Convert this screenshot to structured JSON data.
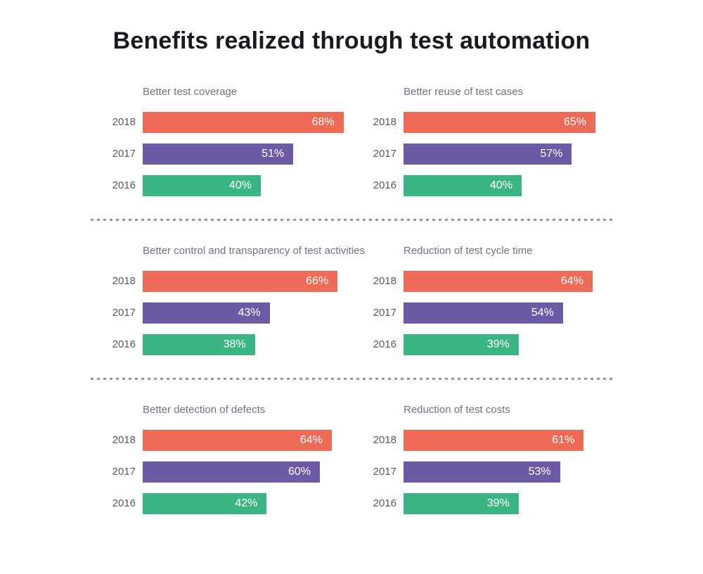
{
  "title": "Benefits realized through test automation",
  "years": [
    "2018",
    "2017",
    "2016"
  ],
  "colors": {
    "series": {
      "2018": "#EC6A56",
      "2017": "#6D5AA5",
      "2016": "#3CB585"
    },
    "divider": "#969696",
    "heading": "#191922",
    "year_label": "#565B64",
    "chart_title": "#6E7481",
    "value_label": "#FFFFFF",
    "background": "#FFFFFF"
  },
  "grid": {
    "columns": 2,
    "rows": 3,
    "divider_style": "dashed"
  },
  "chart_data": [
    {
      "type": "bar",
      "orientation": "horizontal",
      "title": "Better test coverage",
      "categories": [
        "2018",
        "2017",
        "2016"
      ],
      "values": [
        68,
        51,
        40
      ],
      "labels": [
        "68%",
        "51%",
        "40%"
      ],
      "xlim": [
        0,
        100
      ],
      "grid_lines": false,
      "value_labels_inside_bar_end": true
    },
    {
      "type": "bar",
      "orientation": "horizontal",
      "title": "Better reuse of test cases",
      "categories": [
        "2018",
        "2017",
        "2016"
      ],
      "values": [
        65,
        57,
        40
      ],
      "labels": [
        "65%",
        "57%",
        "40%"
      ],
      "xlim": [
        0,
        100
      ],
      "grid_lines": false,
      "value_labels_inside_bar_end": true
    },
    {
      "type": "bar",
      "orientation": "horizontal",
      "title": "Better control and transparency of test activities",
      "categories": [
        "2018",
        "2017",
        "2016"
      ],
      "values": [
        66,
        43,
        38
      ],
      "labels": [
        "66%",
        "43%",
        "38%"
      ],
      "xlim": [
        0,
        100
      ],
      "grid_lines": false,
      "value_labels_inside_bar_end": true
    },
    {
      "type": "bar",
      "orientation": "horizontal",
      "title": "Reduction of test cycle time",
      "categories": [
        "2018",
        "2017",
        "2016"
      ],
      "values": [
        64,
        54,
        39
      ],
      "labels": [
        "64%",
        "54%",
        "39%"
      ],
      "xlim": [
        0,
        100
      ],
      "grid_lines": false,
      "value_labels_inside_bar_end": true
    },
    {
      "type": "bar",
      "orientation": "horizontal",
      "title": "Better detection of defects",
      "categories": [
        "2018",
        "2017",
        "2016"
      ],
      "values": [
        64,
        60,
        42
      ],
      "labels": [
        "64%",
        "60%",
        "42%"
      ],
      "xlim": [
        0,
        100
      ],
      "grid_lines": false,
      "value_labels_inside_bar_end": true
    },
    {
      "type": "bar",
      "orientation": "horizontal",
      "title": "Reduction of test costs",
      "categories": [
        "2018",
        "2017",
        "2016"
      ],
      "values": [
        61,
        53,
        39
      ],
      "labels": [
        "61%",
        "53%",
        "39%"
      ],
      "xlim": [
        0,
        100
      ],
      "grid_lines": false,
      "value_labels_inside_bar_end": true
    }
  ]
}
